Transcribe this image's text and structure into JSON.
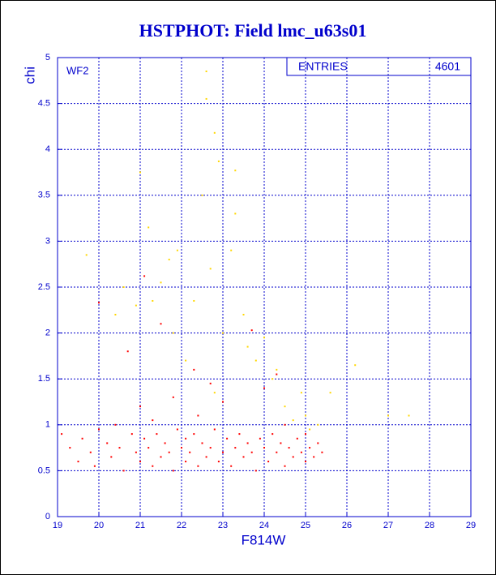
{
  "chart_data": {
    "type": "scatter",
    "title": "HSTPHOT: Field lmc_u63s01",
    "x_label": "F814W",
    "y_label": "chi",
    "annotation": "WF2",
    "stats": {
      "label": "ENTRIES",
      "value": 4601
    },
    "xlim": [
      19,
      29
    ],
    "ylim": [
      0,
      5
    ],
    "xticks": [
      19,
      20,
      21,
      22,
      23,
      24,
      25,
      26,
      27,
      28,
      29
    ],
    "yticks": [
      0,
      0.5,
      1,
      1.5,
      2,
      2.5,
      3,
      3.5,
      4,
      4.5,
      5
    ],
    "grid": true,
    "series": [
      {
        "color": "#ffd700",
        "x": [
          19.7,
          20.4,
          20.6,
          21.0,
          21.2,
          21.3,
          21.5,
          21.7,
          21.8,
          21.9,
          22.1,
          22.3,
          22.5,
          22.6,
          22.6,
          22.7,
          22.8,
          22.8,
          22.9,
          23.0,
          23.2,
          23.3,
          23.3,
          23.5,
          23.6,
          23.8,
          24.0,
          24.3,
          24.5,
          24.7,
          24.9,
          25.1,
          25.3,
          25.6,
          26.2,
          27.5,
          27.0,
          24.2,
          25.0,
          20.9
        ],
        "y": [
          2.85,
          2.2,
          2.5,
          3.75,
          3.15,
          2.35,
          2.55,
          2.8,
          2.0,
          2.9,
          1.7,
          2.35,
          3.5,
          4.85,
          4.55,
          2.7,
          4.18,
          1.35,
          3.87,
          2.0,
          2.9,
          3.77,
          3.3,
          2.2,
          1.85,
          1.7,
          1.95,
          1.6,
          1.2,
          1.05,
          1.35,
          0.95,
          1.0,
          1.35,
          1.65,
          1.1,
          1.1,
          1.5,
          1.1,
          2.3
        ]
      },
      {
        "color": "#ff0000",
        "x": [
          19.1,
          19.3,
          19.5,
          19.6,
          19.8,
          19.9,
          20.0,
          20.0,
          20.2,
          20.3,
          20.4,
          20.5,
          20.6,
          20.7,
          20.8,
          20.9,
          21.0,
          21.0,
          21.1,
          21.2,
          21.3,
          21.3,
          21.4,
          21.5,
          21.6,
          21.7,
          21.8,
          21.8,
          21.9,
          22.0,
          22.1,
          22.1,
          22.2,
          22.3,
          22.4,
          22.4,
          22.5,
          22.6,
          22.7,
          22.8,
          22.9,
          23.0,
          23.0,
          23.1,
          23.2,
          23.3,
          23.4,
          23.5,
          23.6,
          23.7,
          23.8,
          23.9,
          24.0,
          24.0,
          24.1,
          24.2,
          24.3,
          24.4,
          24.5,
          24.5,
          24.6,
          24.7,
          24.8,
          24.9,
          25.0,
          25.0,
          25.1,
          25.2,
          25.3,
          25.4,
          21.5,
          22.3,
          21.1,
          23.7,
          22.7,
          24.3
        ],
        "y": [
          0.9,
          0.75,
          0.6,
          0.85,
          0.7,
          0.55,
          0.95,
          2.33,
          0.8,
          0.65,
          1.0,
          0.75,
          0.5,
          1.8,
          0.9,
          0.7,
          0.6,
          1.2,
          0.85,
          0.75,
          0.55,
          1.05,
          0.9,
          0.65,
          0.8,
          0.7,
          0.5,
          1.3,
          0.95,
          0.75,
          0.6,
          0.85,
          0.7,
          0.9,
          0.55,
          1.1,
          0.8,
          0.65,
          0.75,
          0.95,
          0.6,
          0.7,
          1.25,
          0.85,
          0.55,
          0.75,
          0.9,
          0.65,
          0.8,
          0.7,
          0.5,
          0.85,
          0.75,
          1.4,
          0.6,
          0.9,
          0.7,
          0.8,
          0.55,
          1.0,
          0.75,
          0.65,
          0.85,
          0.7,
          0.6,
          0.9,
          0.75,
          0.65,
          0.8,
          0.7,
          2.1,
          1.6,
          2.62,
          2.03,
          1.45,
          1.55
        ]
      }
    ]
  }
}
